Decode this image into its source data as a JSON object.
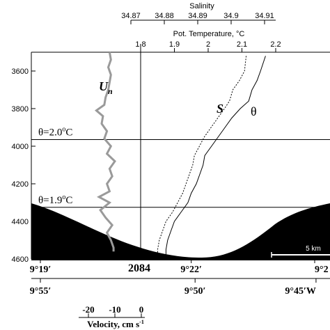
{
  "chart_data": {
    "type": "line",
    "depth_axis": {
      "range": [
        3500,
        4600
      ],
      "ticks": [
        "3600",
        "3800",
        "4000",
        "4200",
        "4400",
        "4600"
      ],
      "tick_values": [
        3600,
        3800,
        4000,
        4200,
        4400,
        4600
      ]
    },
    "salinity_axis": {
      "label": "Salinity",
      "range": [
        34.865,
        34.915
      ],
      "ticks": [
        "34.87",
        "34.88",
        "34.89",
        "34.9",
        "34.91"
      ],
      "tick_values": [
        34.87,
        34.88,
        34.89,
        34.9,
        34.91
      ]
    },
    "temperature_axis": {
      "label": "Pot. Temperature, °C",
      "range": [
        1.75,
        2.25
      ],
      "ticks": [
        "1.8",
        "1.9",
        "2",
        "2.1",
        "2.2"
      ],
      "tick_values": [
        1.8,
        1.9,
        2.0,
        2.1,
        2.2
      ]
    },
    "velocity_axis": {
      "label": "Velocity, cm s",
      "label_sup": "-1",
      "range": [
        -25,
        0
      ],
      "ticks": [
        "-20",
        "-10",
        "0"
      ],
      "tick_values": [
        -20,
        -10,
        0
      ]
    },
    "isotherms": [
      {
        "label_theta": "θ=2.0",
        "label_unit": "C",
        "depth": 3965
      },
      {
        "label_theta": "θ=1.9",
        "label_unit": "C",
        "depth": 4325
      }
    ],
    "lat_labels": [
      "9°19′",
      "9°22′",
      "9°2"
    ],
    "lat_values": [
      0,
      0.55,
      1.0
    ],
    "lon_labels": [
      "9°55′",
      "9°50′",
      "9°45′W"
    ],
    "lon_values": [
      0,
      0.55,
      0.98
    ],
    "station_label": "2084",
    "scale_bar_label": "5 km",
    "series_labels": {
      "un": "U",
      "un_sub": "n",
      "s": "S",
      "theta": "θ"
    },
    "series": [
      {
        "key": "theta",
        "x_axis": "temperature",
        "depth": [
          3520,
          3600,
          3650,
          3700,
          3760,
          3800,
          3850,
          3900,
          3950,
          4000,
          4050,
          4100,
          4150,
          4200,
          4250,
          4300,
          4350,
          4400,
          4450,
          4500,
          4550,
          4580
        ],
        "values": [
          2.17,
          2.155,
          2.145,
          2.13,
          2.12,
          2.095,
          2.07,
          2.05,
          2.03,
          2.01,
          1.99,
          1.985,
          1.975,
          1.965,
          1.95,
          1.94,
          1.92,
          1.9,
          1.89,
          1.88,
          1.875,
          1.875
        ]
      },
      {
        "key": "s",
        "x_axis": "salinity",
        "depth": [
          3520,
          3600,
          3650,
          3700,
          3760,
          3800,
          3850,
          3900,
          3950,
          4000,
          4050,
          4100,
          4150,
          4200,
          4250,
          4300,
          4350,
          4400,
          4450,
          4500,
          4550,
          4580
        ],
        "values": [
          34.9045,
          34.904,
          34.9025,
          34.9005,
          34.8995,
          34.898,
          34.896,
          34.894,
          34.892,
          34.8905,
          34.889,
          34.8885,
          34.8875,
          34.8865,
          34.8855,
          34.884,
          34.8825,
          34.8805,
          34.8795,
          34.8785,
          34.878,
          34.878
        ]
      },
      {
        "key": "un",
        "x_axis": "velocity",
        "depth": [
          3500,
          3540,
          3580,
          3620,
          3660,
          3700,
          3740,
          3780,
          3810,
          3840,
          3880,
          3920,
          3960,
          4000,
          4040,
          4080,
          4120,
          4160,
          4200,
          4240,
          4270,
          4300,
          4340,
          4380,
          4420,
          4460,
          4500,
          4540,
          4560
        ],
        "values": [
          -12,
          -11.5,
          -12.5,
          -11.5,
          -12,
          -12.5,
          -13.5,
          -14,
          -17,
          -14.5,
          -15,
          -13,
          -14,
          -11.5,
          -13,
          -10,
          -12,
          -11,
          -13,
          -12,
          -16,
          -12,
          -15.5,
          -13.5,
          -11,
          -13,
          -11.5,
          -10.5,
          -10.5
        ]
      }
    ]
  }
}
